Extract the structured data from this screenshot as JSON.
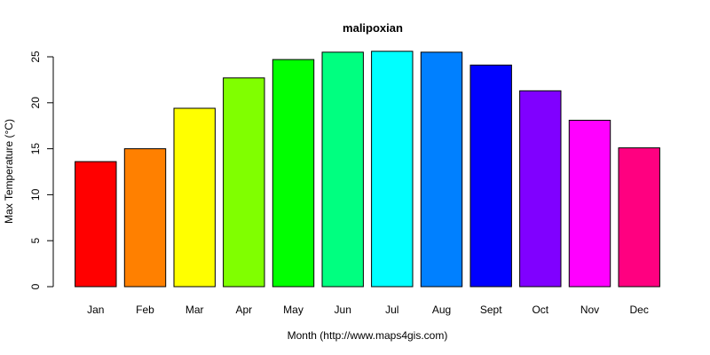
{
  "chart_data": {
    "type": "bar",
    "title": "malipoxian",
    "xlabel": "Month (http://www.maps4gis.com)",
    "ylabel": "Max Temperature (°C)",
    "ylim": [
      0,
      25
    ],
    "yticks": [
      0,
      5,
      10,
      15,
      20,
      25
    ],
    "categories": [
      "Jan",
      "Feb",
      "Mar",
      "Apr",
      "May",
      "Jun",
      "Jul",
      "Aug",
      "Sept",
      "Oct",
      "Nov",
      "Dec"
    ],
    "values": [
      13.6,
      15.0,
      19.4,
      22.7,
      24.7,
      25.5,
      25.6,
      25.5,
      24.1,
      21.3,
      18.1,
      15.1
    ],
    "colors": [
      "#FF0000",
      "#FF8000",
      "#FFFF00",
      "#80FF00",
      "#00FF00",
      "#00FF80",
      "#00FFFF",
      "#0080FF",
      "#0000FF",
      "#8000FF",
      "#FF00FF",
      "#FF0080"
    ],
    "grid": false,
    "legend": "none"
  }
}
